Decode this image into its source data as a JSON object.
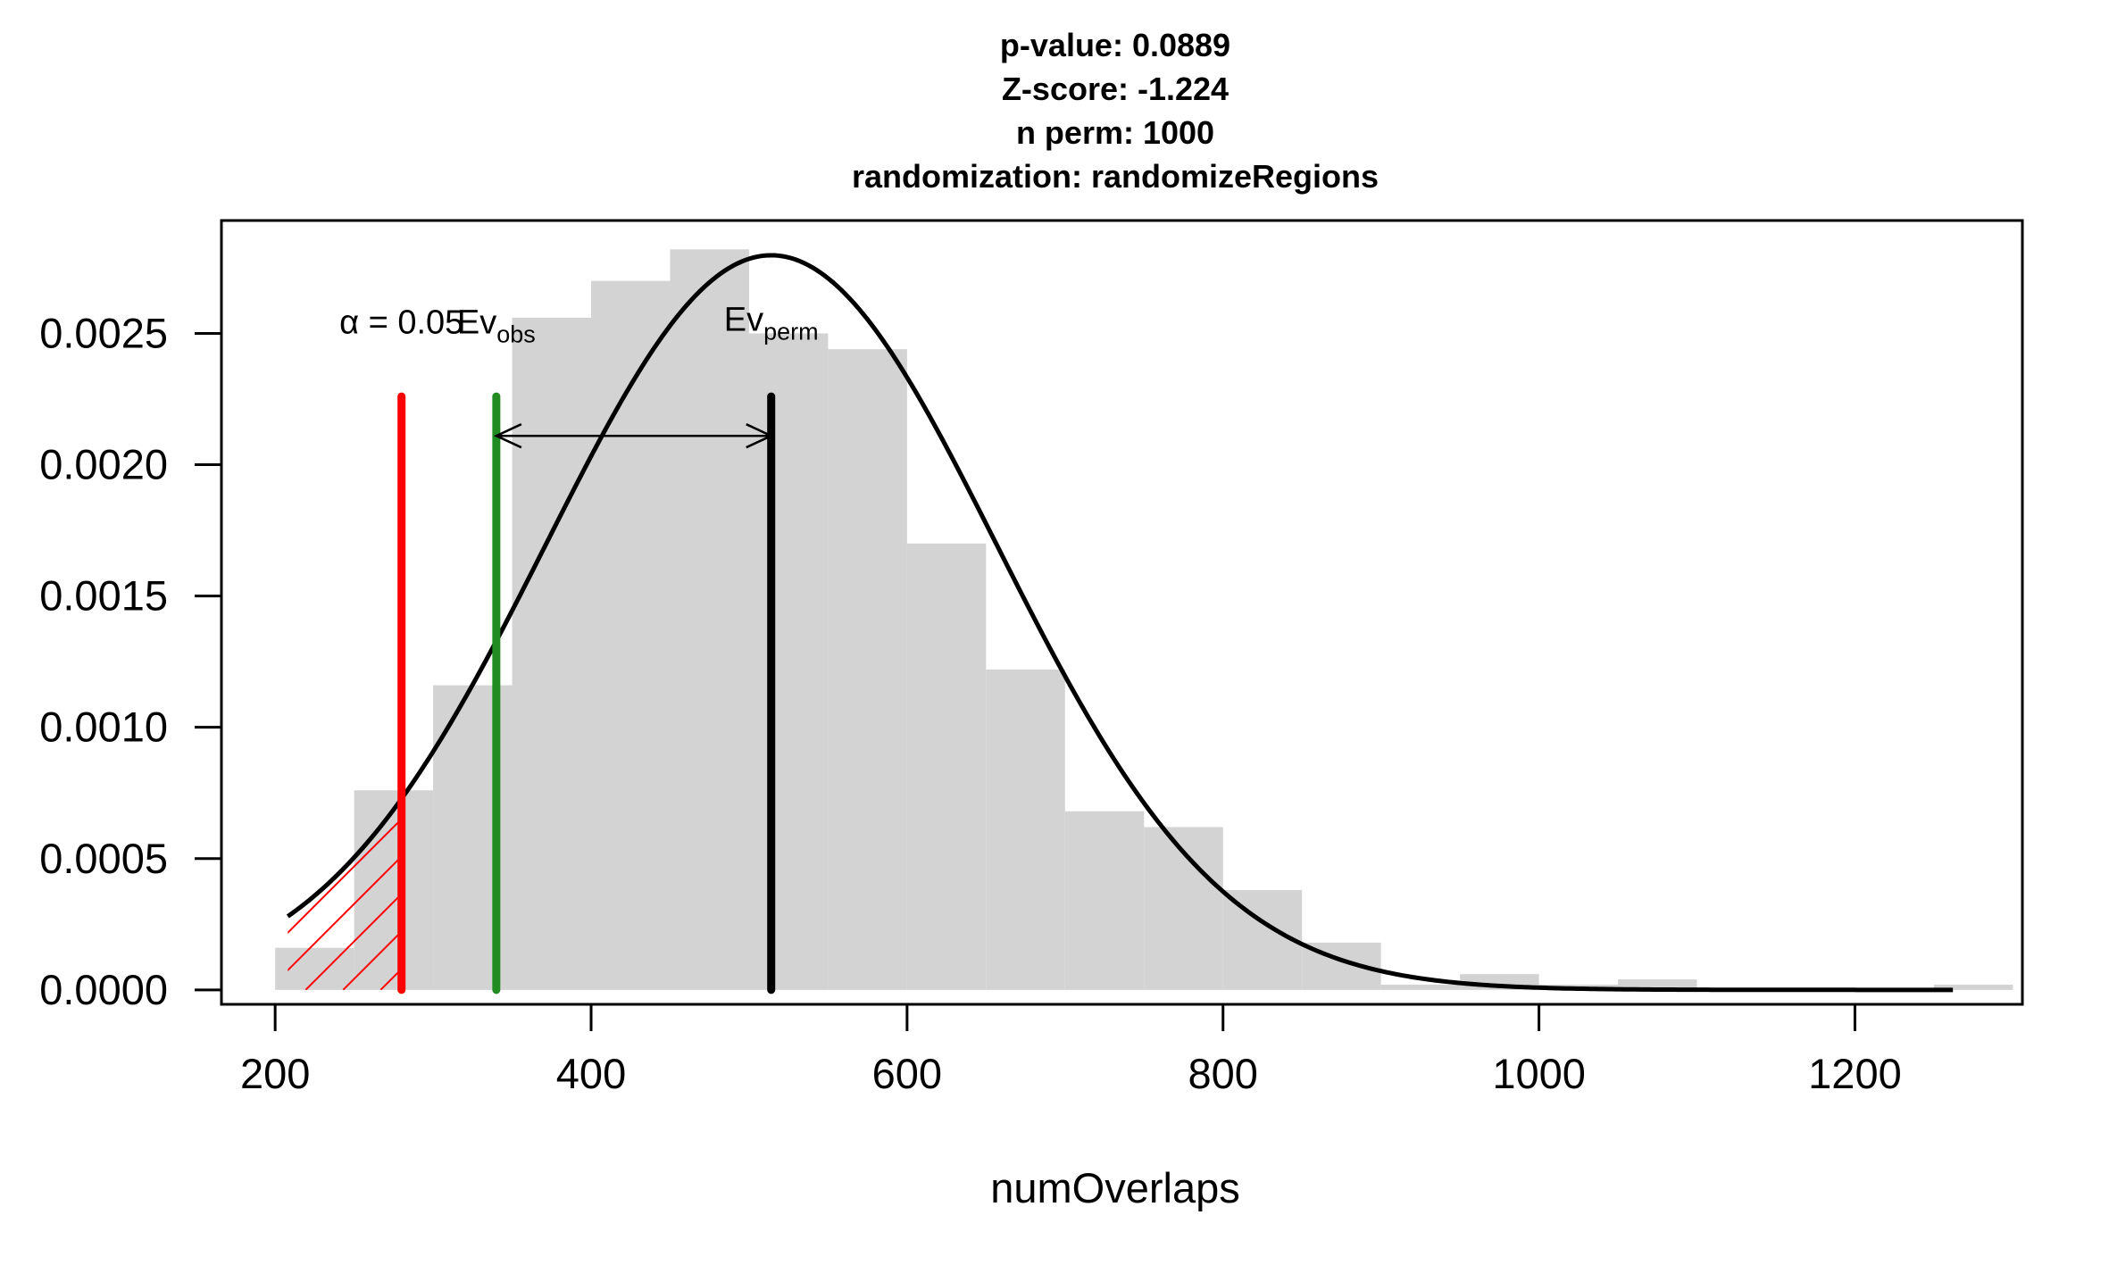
{
  "chart_data": {
    "type": "bar",
    "title_lines": [
      "p-value:  0.0889",
      "Z-score:  -1.224",
      "n perm:  1000",
      "randomization:  randomizeRegions"
    ],
    "xlabel": "numOverlaps",
    "ylabel": "",
    "xlim": [
      166,
      1306
    ],
    "ylim": [
      -5.5e-05,
      0.00293
    ],
    "x_ticks": [
      200,
      400,
      600,
      800,
      1000,
      1200
    ],
    "x_tick_labels": [
      "200",
      "400",
      "600",
      "800",
      "1000",
      "1200"
    ],
    "y_ticks": [
      0,
      0.0005,
      0.001,
      0.0015,
      0.002,
      0.0025
    ],
    "y_tick_labels": [
      "0.0000",
      "0.0005",
      "0.0010",
      "0.0015",
      "0.0020",
      "0.0025"
    ],
    "histogram_bins": [
      {
        "x0": 200,
        "x1": 250,
        "density": 0.00016
      },
      {
        "x0": 250,
        "x1": 300,
        "density": 0.00076
      },
      {
        "x0": 300,
        "x1": 350,
        "density": 0.00116
      },
      {
        "x0": 350,
        "x1": 400,
        "density": 0.00256
      },
      {
        "x0": 400,
        "x1": 450,
        "density": 0.0027
      },
      {
        "x0": 450,
        "x1": 500,
        "density": 0.00282
      },
      {
        "x0": 500,
        "x1": 550,
        "density": 0.0025
      },
      {
        "x0": 550,
        "x1": 600,
        "density": 0.00244
      },
      {
        "x0": 600,
        "x1": 650,
        "density": 0.0017
      },
      {
        "x0": 650,
        "x1": 700,
        "density": 0.00122
      },
      {
        "x0": 700,
        "x1": 750,
        "density": 0.00068
      },
      {
        "x0": 750,
        "x1": 800,
        "density": 0.00062
      },
      {
        "x0": 800,
        "x1": 850,
        "density": 0.00038
      },
      {
        "x0": 850,
        "x1": 900,
        "density": 0.00018
      },
      {
        "x0": 900,
        "x1": 950,
        "density": 2e-05
      },
      {
        "x0": 950,
        "x1": 1000,
        "density": 6e-05
      },
      {
        "x0": 1000,
        "x1": 1050,
        "density": 2e-05
      },
      {
        "x0": 1050,
        "x1": 1100,
        "density": 4e-05
      },
      {
        "x0": 1100,
        "x1": 1150,
        "density": 0.0
      },
      {
        "x0": 1150,
        "x1": 1200,
        "density": 0.0
      },
      {
        "x0": 1200,
        "x1": 1250,
        "density": 0.0
      },
      {
        "x0": 1250,
        "x1": 1300,
        "density": 2e-05
      }
    ],
    "normal_curve": {
      "mean": 514,
      "sd": 142.6,
      "x_from": 208,
      "x_to": 1262
    },
    "alpha_threshold": {
      "x": 280,
      "top": 0.00226,
      "label": "α = 0.05",
      "color": "#ff0000"
    },
    "observed": {
      "x": 340,
      "top": 0.00226,
      "label": "Ev",
      "label_sub": "obs",
      "color": "#228b22"
    },
    "permuted_mean": {
      "x": 514,
      "top": 0.00226,
      "label": "Ev",
      "label_sub": "perm",
      "color": "#000000"
    },
    "arrow_y": 0.00211,
    "colors": {
      "histogram": "#d3d3d3",
      "curve": "#000000",
      "hatch": "#ff0000"
    }
  }
}
